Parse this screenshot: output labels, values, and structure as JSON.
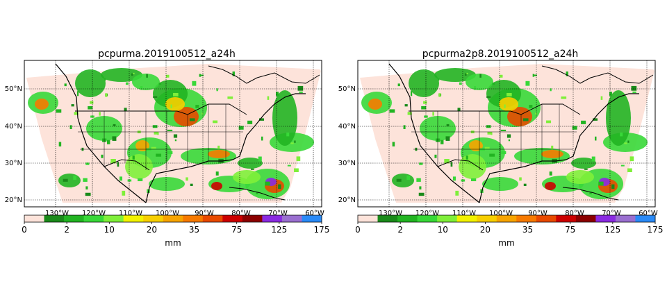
{
  "chart_data": [
    {
      "type": "heatmap",
      "title": "pcpurma.2019100512_a24h",
      "lon_ticks": [
        "130°W",
        "120°W",
        "110°W",
        "100°W",
        "90°W",
        "80°W",
        "70°W",
        "60°W"
      ],
      "lat_ticks": [
        "50°N",
        "40°N",
        "30°N",
        "20°N"
      ],
      "colorbar": {
        "label": "mm",
        "tick_labels": [
          "0",
          "2",
          "10",
          "20",
          "35",
          "75",
          "125",
          "175"
        ]
      }
    },
    {
      "type": "heatmap",
      "title": "pcpurma2p8.2019100512_a24h",
      "lon_ticks": [
        "130°W",
        "120°W",
        "110°W",
        "100°W",
        "90°W",
        "80°W",
        "70°W",
        "60°W"
      ],
      "lat_ticks": [
        "50°N",
        "40°N",
        "30°N",
        "20°N"
      ],
      "colorbar": {
        "label": "mm",
        "tick_labels": [
          "0",
          "2",
          "10",
          "20",
          "35",
          "75",
          "125",
          "175"
        ]
      }
    }
  ],
  "palette": {
    "background_domain": "#fde3da",
    "colors": [
      "#fde3da",
      "#1a8a1a",
      "#22b422",
      "#38d838",
      "#7fef3a",
      "#f2f200",
      "#f7cf00",
      "#f7a400",
      "#f77a00",
      "#e84a00",
      "#cc0000",
      "#8b0000",
      "#8a2be2",
      "#9a6fd0",
      "#2a8af7"
    ]
  }
}
